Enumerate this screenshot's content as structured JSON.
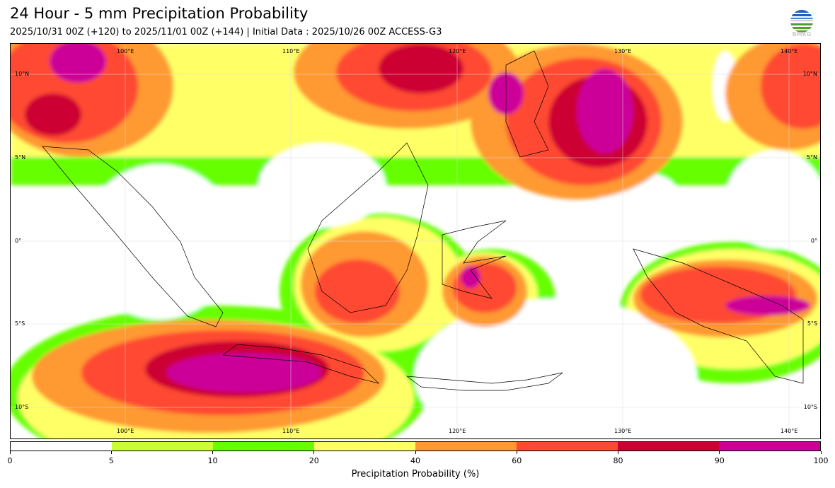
{
  "header": {
    "title": "24 Hour - 5 mm Precipitation Probability",
    "subtitle": "2025/10/31 00Z (+120) to 2025/11/01 00Z (+144) | Initial Data : 2025/10/26 00Z ACCESS-G3",
    "logo_text": "BMKG"
  },
  "map": {
    "lon_labels": [
      "100°E",
      "110°E",
      "120°E",
      "130°E",
      "140°E"
    ],
    "lat_labels": [
      "10°N",
      "5°N",
      "0°",
      "5°S",
      "10°S"
    ]
  },
  "colorbar": {
    "label": "Precipitation Probability (%)",
    "ticks": [
      "0",
      "5",
      "10",
      "20",
      "40",
      "60",
      "80",
      "90",
      "100"
    ],
    "colors": [
      "#ffffff",
      "#ccff33",
      "#66ff00",
      "#ffff66",
      "#ff9933",
      "#ff4a33",
      "#cc0033",
      "#cc0099"
    ]
  }
}
